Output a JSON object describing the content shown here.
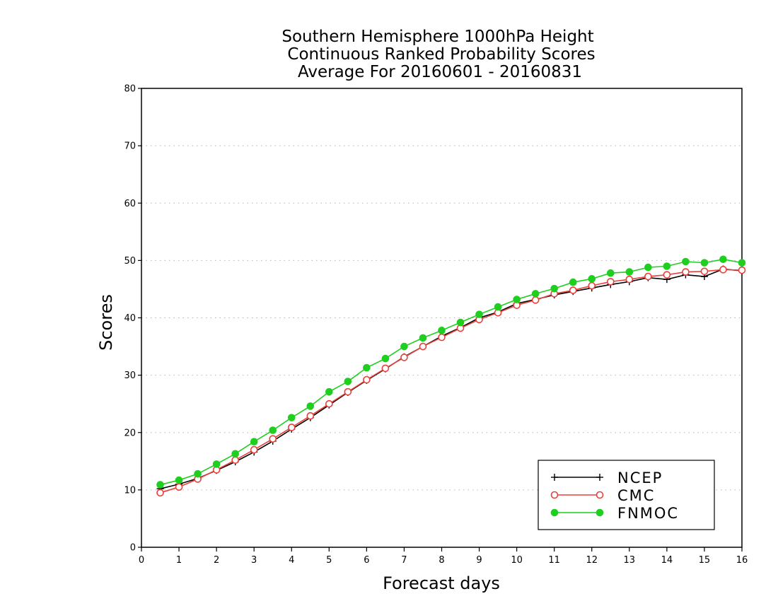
{
  "chart_data": {
    "type": "line",
    "title": "Southern Hemisphere 1000hPa Height",
    "subtitle": "Continuous Ranked Probability Scores",
    "subtitle2": "Average For 20160601 - 20160831",
    "xlabel": "Forecast days",
    "ylabel": "Scores",
    "xlim": [
      0,
      16
    ],
    "ylim": [
      0,
      80
    ],
    "xticks": [
      "0",
      "1",
      "2",
      "3",
      "4",
      "5",
      "6",
      "7",
      "8",
      "9",
      "10",
      "11",
      "12",
      "13",
      "14",
      "15",
      "16"
    ],
    "yticks": [
      "0",
      "10",
      "20",
      "30",
      "40",
      "50",
      "60",
      "70",
      "80"
    ],
    "grid": true,
    "legend_position": "bottom-right",
    "x": [
      0.5,
      1,
      1.5,
      2,
      2.5,
      3,
      3.5,
      4,
      4.5,
      5,
      5.5,
      6,
      6.5,
      7,
      7.5,
      8,
      8.5,
      9,
      9.5,
      10,
      10.5,
      11,
      11.5,
      12,
      12.5,
      13,
      13.5,
      14,
      14.5,
      15,
      15.5,
      16
    ],
    "series": [
      {
        "name": "NCEP",
        "color": "#000000",
        "marker": "plus",
        "values": [
          10.2,
          11.0,
          12.0,
          13.4,
          14.9,
          16.6,
          18.5,
          20.6,
          22.6,
          24.8,
          27.0,
          29.1,
          31.1,
          33.2,
          35.0,
          36.8,
          38.3,
          40.0,
          41.0,
          42.5,
          43.2,
          44.0,
          44.6,
          45.2,
          45.8,
          46.3,
          47.0,
          46.7,
          47.5,
          47.2,
          48.5,
          48.2
        ]
      },
      {
        "name": "CMC",
        "color": "#e8413c",
        "marker": "open-circle",
        "values": [
          9.5,
          10.5,
          11.9,
          13.5,
          15.2,
          17.0,
          18.9,
          20.9,
          22.9,
          25.0,
          27.1,
          29.2,
          31.2,
          33.1,
          35.0,
          36.6,
          38.2,
          39.7,
          40.9,
          42.2,
          43.1,
          44.2,
          44.8,
          45.6,
          46.3,
          46.7,
          47.2,
          47.5,
          48.0,
          48.1,
          48.4,
          48.3
        ]
      },
      {
        "name": "FNMOC",
        "color": "#1fcf1f",
        "marker": "filled-circle",
        "values": [
          10.9,
          11.7,
          12.8,
          14.5,
          16.3,
          18.4,
          20.4,
          22.6,
          24.6,
          27.1,
          28.9,
          31.3,
          32.9,
          35.0,
          36.5,
          37.8,
          39.2,
          40.6,
          41.9,
          43.2,
          44.2,
          45.1,
          46.2,
          46.8,
          47.8,
          48.0,
          48.8,
          49.0,
          49.8,
          49.6,
          50.2,
          49.6
        ]
      }
    ]
  }
}
